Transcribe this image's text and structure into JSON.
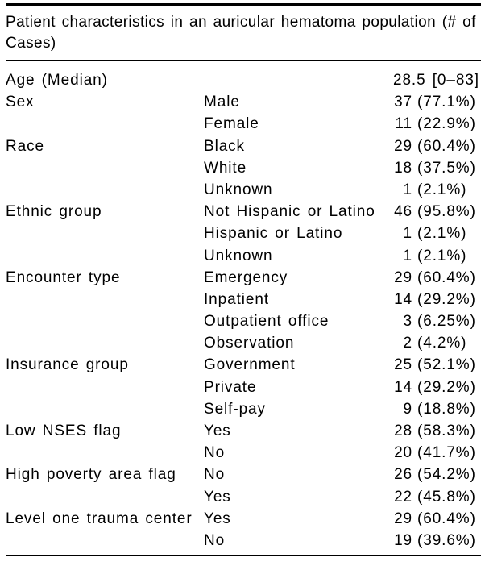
{
  "page": {
    "background_color": "#ffffff",
    "text_color": "#000000",
    "rule_color": "#000000"
  },
  "table": {
    "title": "Patient characteristics in an auricular hematoma population (# of Cases)",
    "title_lines": [
      "Patient characteristics in an auricular hematoma population (# of",
      "Cases)"
    ],
    "rows": [
      {
        "characteristic": "Age (Median)",
        "category": "",
        "value_full": "28.5 [0–83]"
      },
      {
        "characteristic": "Sex",
        "category": "Male",
        "count": "37",
        "pct": "(77.1%)"
      },
      {
        "characteristic": "",
        "category": "Female",
        "count": "11",
        "pct": "(22.9%)"
      },
      {
        "characteristic": "Race",
        "category": "Black",
        "count": "29",
        "pct": "(60.4%)"
      },
      {
        "characteristic": "",
        "category": "White",
        "count": "18",
        "pct": "(37.5%)"
      },
      {
        "characteristic": "",
        "category": "Unknown",
        "count": "1",
        "pct": "(2.1%)"
      },
      {
        "characteristic": "Ethnic group",
        "category": "Not Hispanic or Latino",
        "count": "46",
        "pct": "(95.8%)"
      },
      {
        "characteristic": "",
        "category": "Hispanic or Latino",
        "count": "1",
        "pct": "(2.1%)"
      },
      {
        "characteristic": "",
        "category": "Unknown",
        "count": "1",
        "pct": "(2.1%)"
      },
      {
        "characteristic": "Encounter type",
        "category": "Emergency",
        "count": "29",
        "pct": "(60.4%)"
      },
      {
        "characteristic": "",
        "category": "Inpatient",
        "count": "14",
        "pct": "(29.2%)"
      },
      {
        "characteristic": "",
        "category": "Outpatient office",
        "count": "3",
        "pct": "(6.25%)"
      },
      {
        "characteristic": "",
        "category": "Observation",
        "count": "2",
        "pct": "(4.2%)"
      },
      {
        "characteristic": "Insurance group",
        "category": "Government",
        "count": "25",
        "pct": "(52.1%)"
      },
      {
        "characteristic": "",
        "category": "Private",
        "count": "14",
        "pct": "(29.2%)"
      },
      {
        "characteristic": "",
        "category": "Self-pay",
        "count": "9",
        "pct": "(18.8%)"
      },
      {
        "characteristic": "Low NSES flag",
        "category": "Yes",
        "count": "28",
        "pct": "(58.3%)"
      },
      {
        "characteristic": "",
        "category": "No",
        "count": "20",
        "pct": "(41.7%)"
      },
      {
        "characteristic": "High poverty area flag",
        "category": "No",
        "count": "26",
        "pct": "(54.2%)"
      },
      {
        "characteristic": "",
        "category": "Yes",
        "count": "22",
        "pct": "(45.8%)"
      },
      {
        "characteristic": "Level one trauma center",
        "category": "Yes",
        "count": "29",
        "pct": "(60.4%)"
      },
      {
        "characteristic": "",
        "category": "No",
        "count": "19",
        "pct": "(39.6%)"
      }
    ]
  }
}
